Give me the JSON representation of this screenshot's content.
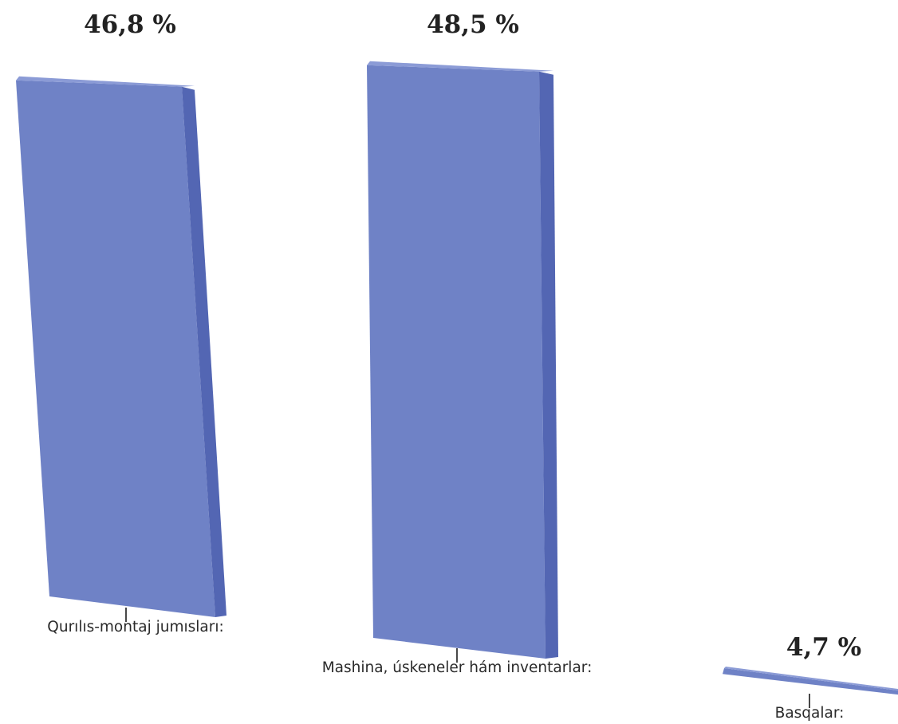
{
  "chart_data": {
    "type": "bar",
    "categories": [
      "Qurılıs-montaj jumısları:",
      "Mashina, úskeneler hám inventarlar:",
      "Basqalar:"
    ],
    "series": [
      {
        "values": [
          46.8,
          48.5,
          4.7
        ]
      }
    ],
    "value_labels": [
      "46,8 %",
      "48,5 %",
      "4,7 %"
    ],
    "unit": "%",
    "title": "",
    "xlabel": "",
    "ylabel": "",
    "ylim": [
      0,
      50
    ],
    "grid": false,
    "legend": "none",
    "colors": {
      "front": "#6f82c6",
      "side": "#5366b3",
      "top": "#8b9bd6",
      "label": "#222222"
    }
  }
}
